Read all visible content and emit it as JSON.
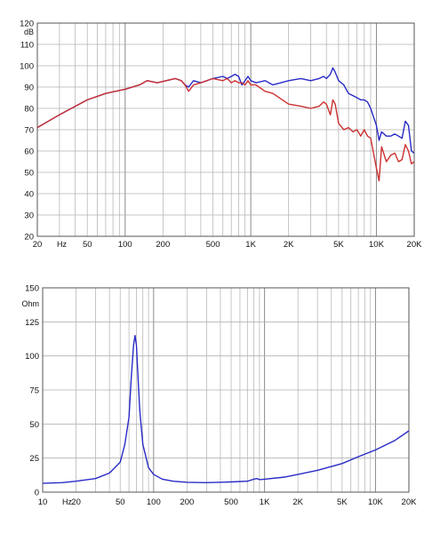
{
  "chart_data": [
    {
      "type": "line",
      "xscale": "log",
      "ylabel": "dB",
      "xunit": "Hz",
      "grid": true,
      "xlim": [
        20,
        20000
      ],
      "ylim": [
        20,
        120
      ],
      "yticks": [
        20,
        30,
        40,
        50,
        60,
        70,
        80,
        90,
        100,
        110,
        120
      ],
      "xticks": [
        {
          "value": 20,
          "label": "20"
        },
        {
          "value": 50,
          "label": "50"
        },
        {
          "value": 100,
          "label": "100"
        },
        {
          "value": 200,
          "label": "200"
        },
        {
          "value": 500,
          "label": "500"
        },
        {
          "value": 1000,
          "label": "1K"
        },
        {
          "value": 2000,
          "label": "2K"
        },
        {
          "value": 5000,
          "label": "5K"
        },
        {
          "value": 10000,
          "label": "10K"
        },
        {
          "value": 20000,
          "label": "20K"
        }
      ],
      "series": [
        {
          "color": "#2a2ac8",
          "x": [
            20,
            30,
            50,
            70,
            100,
            130,
            150,
            180,
            250,
            280,
            300,
            320,
            350,
            400,
            500,
            600,
            650,
            700,
            750,
            800,
            850,
            900,
            950,
            1000,
            1100,
            1300,
            1500,
            2000,
            2500,
            3000,
            3500,
            3800,
            4000,
            4300,
            4500,
            4700,
            5000,
            5500,
            6000,
            6500,
            7000,
            7500,
            8000,
            8500,
            9000,
            10000,
            10500,
            11000,
            12000,
            13000,
            14000,
            15000,
            16000,
            17000,
            18000,
            19000,
            20000
          ],
          "y": [
            71,
            77,
            84,
            87,
            89,
            91,
            93,
            92,
            94,
            93,
            91,
            90,
            93,
            92,
            94,
            95,
            94,
            95,
            96,
            95,
            91,
            93,
            95,
            93,
            92,
            93,
            91,
            93,
            94,
            93,
            94,
            95,
            94,
            96,
            99,
            97,
            93,
            91,
            87,
            86,
            85,
            84,
            84,
            83,
            80,
            72,
            65,
            69,
            67,
            67,
            68,
            67,
            66,
            74,
            72,
            60,
            59
          ]
        },
        {
          "color": "#cc3030",
          "x": [
            20,
            30,
            50,
            70,
            100,
            130,
            150,
            180,
            250,
            280,
            300,
            320,
            350,
            400,
            500,
            600,
            650,
            700,
            750,
            800,
            850,
            900,
            950,
            1000,
            1100,
            1300,
            1500,
            2000,
            2500,
            3000,
            3500,
            3800,
            4000,
            4300,
            4500,
            4700,
            5000,
            5500,
            6000,
            6500,
            7000,
            7500,
            8000,
            8500,
            9000,
            10000,
            10500,
            11000,
            12000,
            13000,
            14000,
            15000,
            16000,
            17000,
            18000,
            19000,
            20000
          ],
          "y": [
            71,
            77,
            84,
            87,
            89,
            91,
            93,
            92,
            94,
            93,
            91,
            88,
            91,
            92,
            94,
            93,
            94,
            92,
            93,
            92,
            92,
            91,
            93,
            91,
            91,
            88,
            87,
            82,
            81,
            80,
            81,
            83,
            82,
            77,
            84,
            82,
            73,
            70,
            71,
            69,
            70,
            67,
            70,
            67,
            66,
            52,
            46,
            62,
            55,
            58,
            59,
            55,
            56,
            63,
            60,
            54,
            55
          ]
        }
      ]
    },
    {
      "type": "line",
      "xscale": "log",
      "ylabel": "Ohm",
      "xunit": "Hz",
      "grid": true,
      "xlim": [
        10,
        20000
      ],
      "ylim": [
        0,
        150
      ],
      "yticks": [
        0,
        25,
        50,
        75,
        100,
        125,
        150
      ],
      "xticks": [
        {
          "value": 10,
          "label": "10"
        },
        {
          "value": 20,
          "label": "20"
        },
        {
          "value": 50,
          "label": "50"
        },
        {
          "value": 100,
          "label": "100"
        },
        {
          "value": 200,
          "label": "200"
        },
        {
          "value": 500,
          "label": "500"
        },
        {
          "value": 1000,
          "label": "1K"
        },
        {
          "value": 2000,
          "label": "2K"
        },
        {
          "value": 5000,
          "label": "5K"
        },
        {
          "value": 10000,
          "label": "10K"
        },
        {
          "value": 20000,
          "label": "20K"
        }
      ],
      "series": [
        {
          "color": "#2a2ac8",
          "x": [
            10,
            15,
            20,
            30,
            40,
            50,
            55,
            60,
            63,
            66,
            68,
            70,
            72,
            75,
            80,
            90,
            100,
            120,
            150,
            200,
            300,
            500,
            700,
            800,
            850,
            900,
            1000,
            1500,
            2000,
            3000,
            5000,
            7000,
            10000,
            15000,
            20000
          ],
          "y": [
            6.5,
            7,
            8,
            10,
            14,
            22,
            35,
            55,
            85,
            108,
            115,
            108,
            88,
            60,
            35,
            18,
            13,
            9.5,
            8,
            7.2,
            7,
            7.5,
            8,
            9.5,
            10,
            9.2,
            9.5,
            11,
            13,
            16,
            21,
            26,
            31,
            38,
            45
          ]
        }
      ]
    }
  ]
}
